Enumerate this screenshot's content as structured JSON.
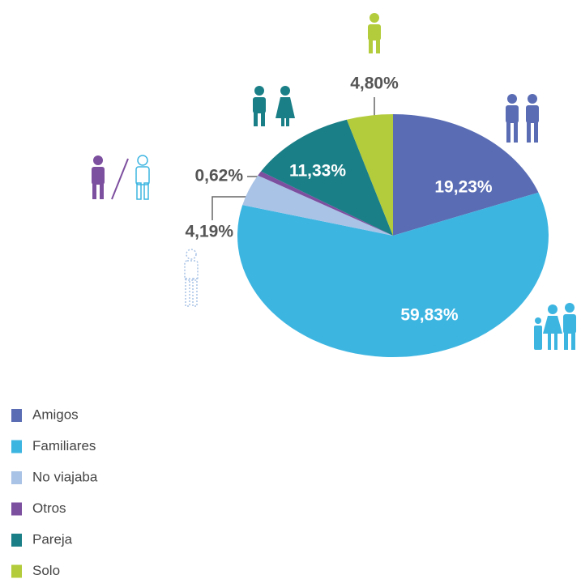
{
  "chart_data": {
    "type": "pie",
    "categories": [
      "Amigos",
      "Familiares",
      "No viajaba",
      "Otros",
      "Pareja",
      "Solo"
    ],
    "values": [
      19.23,
      59.83,
      4.19,
      0.62,
      11.33,
      4.8
    ],
    "value_labels": [
      "19,23%",
      "59,83%",
      "4,19%",
      "0,62%",
      "11,33%",
      "4,80%"
    ],
    "colors": [
      "#5a6db4",
      "#3db5e1",
      "#a9c3e6",
      "#7d4f9f",
      "#1b7f87",
      "#b3cc3b"
    ],
    "legend": "bottom-left"
  }
}
